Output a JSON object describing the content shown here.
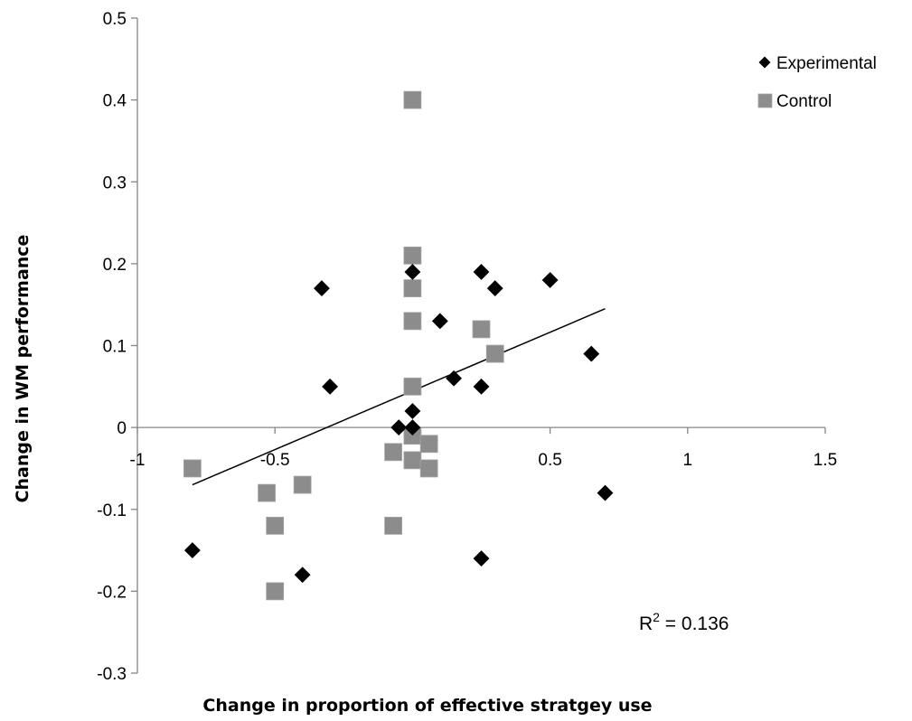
{
  "chart_data": {
    "type": "scatter",
    "title": "",
    "xlabel": "Change in proportion of effective stratgey use",
    "ylabel": "Change in WM performance",
    "xlim": [
      -1,
      1.5
    ],
    "ylim": [
      -0.3,
      0.5
    ],
    "x_ticks": [
      -1,
      -0.5,
      0,
      0.5,
      1,
      1.5
    ],
    "x_tick_labels": [
      "-1",
      "-0.5",
      "0",
      "0.5",
      "1",
      "1.5"
    ],
    "y_ticks": [
      -0.3,
      -0.2,
      -0.1,
      0,
      0.1,
      0.2,
      0.3,
      0.4,
      0.5
    ],
    "y_tick_labels": [
      "-0.3",
      "-0.2",
      "-0.1",
      "0",
      "0.1",
      "0.2",
      "0.3",
      "0.4",
      "0.5"
    ],
    "grid": false,
    "legend_position": "top-right",
    "series": [
      {
        "name": "Experimental",
        "marker": "diamond",
        "color": "#000000",
        "points": [
          {
            "x": -0.8,
            "y": -0.15
          },
          {
            "x": -0.4,
            "y": -0.18
          },
          {
            "x": -0.33,
            "y": 0.17
          },
          {
            "x": -0.3,
            "y": 0.05
          },
          {
            "x": -0.05,
            "y": 0.0
          },
          {
            "x": 0.0,
            "y": 0.19
          },
          {
            "x": 0.0,
            "y": 0.02
          },
          {
            "x": 0.0,
            "y": 0.0
          },
          {
            "x": 0.1,
            "y": 0.13
          },
          {
            "x": 0.15,
            "y": 0.06
          },
          {
            "x": 0.25,
            "y": 0.05
          },
          {
            "x": 0.25,
            "y": -0.16
          },
          {
            "x": 0.25,
            "y": 0.19
          },
          {
            "x": 0.3,
            "y": 0.17
          },
          {
            "x": 0.5,
            "y": 0.18
          },
          {
            "x": 0.65,
            "y": 0.09
          },
          {
            "x": 0.7,
            "y": -0.08
          }
        ]
      },
      {
        "name": "Control",
        "marker": "square",
        "color": "#8c8c8c",
        "points": [
          {
            "x": -0.8,
            "y": -0.05
          },
          {
            "x": -0.53,
            "y": -0.08
          },
          {
            "x": -0.5,
            "y": -0.12
          },
          {
            "x": -0.5,
            "y": -0.2
          },
          {
            "x": -0.4,
            "y": -0.07
          },
          {
            "x": -0.07,
            "y": -0.12
          },
          {
            "x": -0.07,
            "y": -0.03
          },
          {
            "x": 0.0,
            "y": 0.4
          },
          {
            "x": 0.0,
            "y": 0.21
          },
          {
            "x": 0.0,
            "y": 0.17
          },
          {
            "x": 0.0,
            "y": 0.13
          },
          {
            "x": 0.0,
            "y": 0.05
          },
          {
            "x": 0.0,
            "y": -0.01
          },
          {
            "x": 0.0,
            "y": -0.04
          },
          {
            "x": 0.06,
            "y": -0.02
          },
          {
            "x": 0.06,
            "y": -0.05
          },
          {
            "x": 0.25,
            "y": 0.12
          },
          {
            "x": 0.3,
            "y": 0.09
          }
        ]
      }
    ],
    "trendline": {
      "x": [
        -0.8,
        0.7
      ],
      "y": [
        -0.07,
        0.145
      ]
    },
    "annotation": {
      "r2_prefix": "R",
      "r2_exponent": "2",
      "r2_suffix": " = 0.136"
    }
  }
}
